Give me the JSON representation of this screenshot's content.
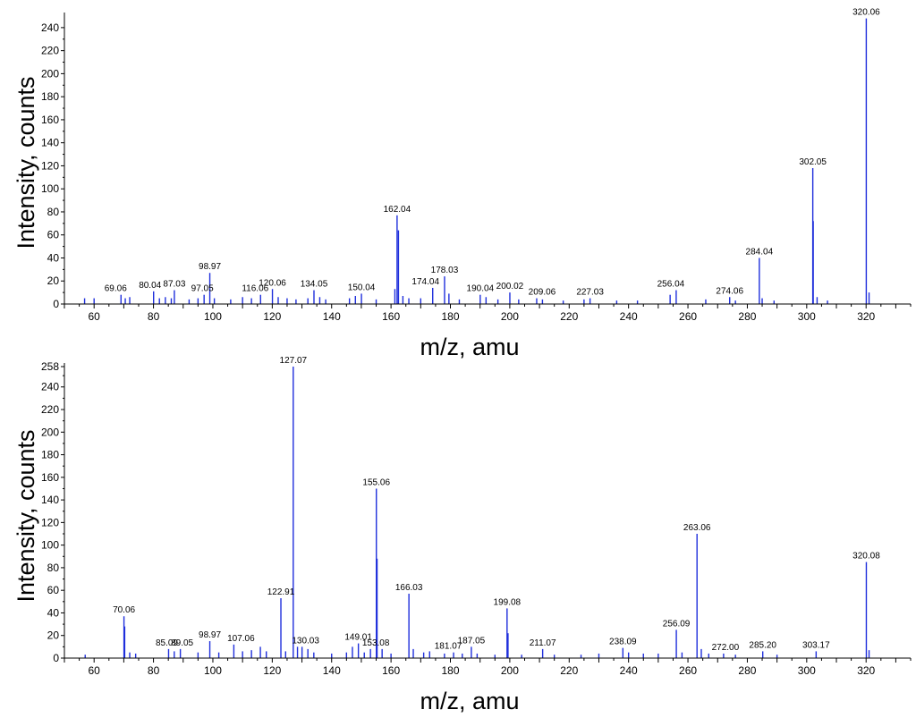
{
  "colors": {
    "series": "#1f2fdc",
    "axis": "#000000"
  },
  "chart_data": [
    {
      "type": "bar",
      "xlabel": "m/z, amu",
      "ylabel": "Intensity, counts",
      "xlim": [
        50,
        335
      ],
      "ylim": [
        0,
        250
      ],
      "xticks": [
        60,
        80,
        100,
        120,
        140,
        160,
        180,
        200,
        220,
        240,
        260,
        280,
        300,
        320
      ],
      "yticks": [
        0,
        20,
        40,
        60,
        80,
        100,
        120,
        140,
        160,
        180,
        200,
        220,
        240
      ],
      "peaks": [
        {
          "mz": 56.8,
          "i": 5
        },
        {
          "mz": 60.0,
          "i": 5
        },
        {
          "mz": 69.06,
          "i": 8
        },
        {
          "mz": 70.5,
          "i": 5
        },
        {
          "mz": 72.0,
          "i": 6
        },
        {
          "mz": 80.04,
          "i": 11
        },
        {
          "mz": 82.0,
          "i": 5
        },
        {
          "mz": 84.0,
          "i": 6
        },
        {
          "mz": 86.0,
          "i": 5
        },
        {
          "mz": 87.03,
          "i": 12
        },
        {
          "mz": 92.0,
          "i": 4
        },
        {
          "mz": 95.0,
          "i": 5
        },
        {
          "mz": 97.05,
          "i": 8
        },
        {
          "mz": 98.97,
          "i": 27
        },
        {
          "mz": 100.5,
          "i": 5
        },
        {
          "mz": 106.0,
          "i": 4
        },
        {
          "mz": 110.0,
          "i": 6
        },
        {
          "mz": 113.0,
          "i": 5
        },
        {
          "mz": 116.06,
          "i": 8
        },
        {
          "mz": 120.06,
          "i": 13
        },
        {
          "mz": 122.0,
          "i": 6
        },
        {
          "mz": 125.0,
          "i": 5
        },
        {
          "mz": 128.0,
          "i": 4
        },
        {
          "mz": 132.0,
          "i": 5
        },
        {
          "mz": 134.05,
          "i": 12
        },
        {
          "mz": 136.0,
          "i": 6
        },
        {
          "mz": 138.0,
          "i": 4
        },
        {
          "mz": 146.0,
          "i": 5
        },
        {
          "mz": 148.0,
          "i": 7
        },
        {
          "mz": 150.04,
          "i": 9
        },
        {
          "mz": 155.0,
          "i": 4
        },
        {
          "mz": 161.3,
          "i": 13
        },
        {
          "mz": 162.04,
          "i": 77
        },
        {
          "mz": 162.5,
          "i": 64
        },
        {
          "mz": 164.0,
          "i": 7
        },
        {
          "mz": 166.0,
          "i": 5
        },
        {
          "mz": 170.0,
          "i": 5
        },
        {
          "mz": 174.04,
          "i": 14
        },
        {
          "mz": 178.03,
          "i": 24
        },
        {
          "mz": 179.5,
          "i": 9
        },
        {
          "mz": 183.0,
          "i": 4
        },
        {
          "mz": 190.04,
          "i": 8
        },
        {
          "mz": 192.0,
          "i": 6
        },
        {
          "mz": 196.0,
          "i": 4
        },
        {
          "mz": 200.02,
          "i": 10
        },
        {
          "mz": 203.0,
          "i": 4
        },
        {
          "mz": 209.06,
          "i": 5
        },
        {
          "mz": 211.0,
          "i": 4
        },
        {
          "mz": 218.0,
          "i": 3
        },
        {
          "mz": 225.0,
          "i": 4
        },
        {
          "mz": 227.03,
          "i": 5
        },
        {
          "mz": 236.0,
          "i": 3
        },
        {
          "mz": 243.0,
          "i": 3
        },
        {
          "mz": 254.0,
          "i": 8
        },
        {
          "mz": 256.04,
          "i": 12
        },
        {
          "mz": 266.0,
          "i": 4
        },
        {
          "mz": 274.06,
          "i": 6
        },
        {
          "mz": 276.0,
          "i": 3
        },
        {
          "mz": 284.04,
          "i": 40
        },
        {
          "mz": 285.0,
          "i": 5
        },
        {
          "mz": 289.0,
          "i": 3
        },
        {
          "mz": 302.05,
          "i": 118
        },
        {
          "mz": 302.2,
          "i": 72
        },
        {
          "mz": 303.5,
          "i": 6
        },
        {
          "mz": 307.0,
          "i": 3
        },
        {
          "mz": 320.06,
          "i": 248
        },
        {
          "mz": 321.0,
          "i": 10
        }
      ],
      "labels": [
        {
          "mz": 69.06,
          "i": 8,
          "text": "69.06",
          "dx": -6,
          "dy": -4
        },
        {
          "mz": 80.04,
          "i": 11,
          "text": "80.04",
          "dx": -4,
          "dy": -4
        },
        {
          "mz": 87.03,
          "i": 12,
          "text": "87.03",
          "dx": 0,
          "dy": -4
        },
        {
          "mz": 97.05,
          "i": 8,
          "text": "97.05",
          "dx": -2,
          "dy": -4
        },
        {
          "mz": 98.97,
          "i": 27,
          "text": "98.97",
          "dx": 0,
          "dy": -4
        },
        {
          "mz": 116.06,
          "i": 8,
          "text": "116.06",
          "dx": -6,
          "dy": -4
        },
        {
          "mz": 120.06,
          "i": 13,
          "text": "120.06",
          "dx": 0,
          "dy": -4
        },
        {
          "mz": 134.05,
          "i": 12,
          "text": "134.05",
          "dx": 0,
          "dy": -4
        },
        {
          "mz": 150.04,
          "i": 9,
          "text": "150.04",
          "dx": 0,
          "dy": -4
        },
        {
          "mz": 162.04,
          "i": 77,
          "text": "162.04",
          "dx": 0,
          "dy": -4
        },
        {
          "mz": 174.04,
          "i": 14,
          "text": "174.04",
          "dx": -8,
          "dy": -4
        },
        {
          "mz": 178.03,
          "i": 24,
          "text": "178.03",
          "dx": 0,
          "dy": -4
        },
        {
          "mz": 190.04,
          "i": 8,
          "text": "190.04",
          "dx": 0,
          "dy": -4
        },
        {
          "mz": 200.02,
          "i": 10,
          "text": "200.02",
          "dx": 0,
          "dy": -4
        },
        {
          "mz": 209.06,
          "i": 5,
          "text": "209.06",
          "dx": 6,
          "dy": -4
        },
        {
          "mz": 227.03,
          "i": 5,
          "text": "227.03",
          "dx": 0,
          "dy": -4
        },
        {
          "mz": 256.04,
          "i": 12,
          "text": "256.04",
          "dx": -6,
          "dy": -4
        },
        {
          "mz": 274.06,
          "i": 6,
          "text": "274.06",
          "dx": 0,
          "dy": -4
        },
        {
          "mz": 284.04,
          "i": 40,
          "text": "284.04",
          "dx": 0,
          "dy": -4
        },
        {
          "mz": 302.05,
          "i": 118,
          "text": "302.05",
          "dx": 0,
          "dy": -4
        },
        {
          "mz": 320.06,
          "i": 248,
          "text": "320.06",
          "dx": 0,
          "dy": -4
        }
      ]
    },
    {
      "type": "bar",
      "xlabel": "m/z, amu",
      "ylabel": "Intensity, counts",
      "xlim": [
        50,
        335
      ],
      "ylim": [
        0,
        258
      ],
      "xticks": [
        60,
        80,
        100,
        120,
        140,
        160,
        180,
        200,
        220,
        240,
        260,
        280,
        300,
        320
      ],
      "yticks": [
        0,
        20,
        40,
        60,
        80,
        100,
        120,
        140,
        160,
        180,
        200,
        220,
        240,
        258
      ],
      "peaks": [
        {
          "mz": 57.0,
          "i": 3
        },
        {
          "mz": 70.06,
          "i": 37
        },
        {
          "mz": 70.3,
          "i": 28
        },
        {
          "mz": 72.0,
          "i": 5
        },
        {
          "mz": 74.0,
          "i": 4
        },
        {
          "mz": 85.09,
          "i": 8
        },
        {
          "mz": 87.0,
          "i": 6
        },
        {
          "mz": 89.05,
          "i": 8
        },
        {
          "mz": 95.0,
          "i": 5
        },
        {
          "mz": 98.97,
          "i": 15
        },
        {
          "mz": 102.0,
          "i": 5
        },
        {
          "mz": 107.06,
          "i": 12
        },
        {
          "mz": 110.0,
          "i": 6
        },
        {
          "mz": 113.0,
          "i": 7
        },
        {
          "mz": 116.0,
          "i": 10
        },
        {
          "mz": 118.0,
          "i": 6
        },
        {
          "mz": 122.91,
          "i": 53
        },
        {
          "mz": 124.5,
          "i": 6
        },
        {
          "mz": 127.07,
          "i": 258
        },
        {
          "mz": 128.5,
          "i": 10
        },
        {
          "mz": 130.03,
          "i": 10
        },
        {
          "mz": 132.0,
          "i": 8
        },
        {
          "mz": 134.0,
          "i": 5
        },
        {
          "mz": 140.0,
          "i": 4
        },
        {
          "mz": 145.0,
          "i": 5
        },
        {
          "mz": 147.0,
          "i": 10
        },
        {
          "mz": 149.01,
          "i": 13
        },
        {
          "mz": 151.0,
          "i": 5
        },
        {
          "mz": 153.08,
          "i": 8
        },
        {
          "mz": 155.06,
          "i": 150
        },
        {
          "mz": 155.3,
          "i": 88
        },
        {
          "mz": 157.0,
          "i": 8
        },
        {
          "mz": 160.0,
          "i": 4
        },
        {
          "mz": 166.03,
          "i": 57
        },
        {
          "mz": 167.5,
          "i": 8
        },
        {
          "mz": 171.0,
          "i": 5
        },
        {
          "mz": 173.0,
          "i": 6
        },
        {
          "mz": 178.0,
          "i": 4
        },
        {
          "mz": 181.07,
          "i": 5
        },
        {
          "mz": 184.0,
          "i": 4
        },
        {
          "mz": 187.05,
          "i": 10
        },
        {
          "mz": 189.0,
          "i": 4
        },
        {
          "mz": 195.0,
          "i": 3
        },
        {
          "mz": 199.08,
          "i": 44
        },
        {
          "mz": 199.4,
          "i": 22
        },
        {
          "mz": 204.0,
          "i": 3
        },
        {
          "mz": 211.07,
          "i": 8
        },
        {
          "mz": 215.0,
          "i": 3
        },
        {
          "mz": 224.0,
          "i": 3
        },
        {
          "mz": 230.0,
          "i": 4
        },
        {
          "mz": 238.09,
          "i": 9
        },
        {
          "mz": 240.0,
          "i": 5
        },
        {
          "mz": 245.0,
          "i": 4
        },
        {
          "mz": 250.0,
          "i": 4
        },
        {
          "mz": 256.09,
          "i": 25
        },
        {
          "mz": 258.0,
          "i": 5
        },
        {
          "mz": 263.06,
          "i": 110
        },
        {
          "mz": 264.5,
          "i": 8
        },
        {
          "mz": 267.0,
          "i": 4
        },
        {
          "mz": 272.0,
          "i": 4
        },
        {
          "mz": 276.0,
          "i": 3
        },
        {
          "mz": 285.2,
          "i": 6
        },
        {
          "mz": 290.0,
          "i": 3
        },
        {
          "mz": 303.17,
          "i": 6
        },
        {
          "mz": 320.08,
          "i": 85
        },
        {
          "mz": 321.0,
          "i": 7
        }
      ],
      "labels": [
        {
          "mz": 70.06,
          "i": 37,
          "text": "70.06",
          "dx": 0,
          "dy": -4
        },
        {
          "mz": 85.09,
          "i": 8,
          "text": "85.09",
          "dx": -2,
          "dy": -4
        },
        {
          "mz": 89.05,
          "i": 8,
          "text": "89.05",
          "dx": 2,
          "dy": -4
        },
        {
          "mz": 98.97,
          "i": 15,
          "text": "98.97",
          "dx": 0,
          "dy": -4
        },
        {
          "mz": 107.06,
          "i": 12,
          "text": "107.06",
          "dx": 8,
          "dy": -4
        },
        {
          "mz": 122.91,
          "i": 53,
          "text": "122.91",
          "dx": 0,
          "dy": -4
        },
        {
          "mz": 127.07,
          "i": 258,
          "text": "127.07",
          "dx": 0,
          "dy": -4
        },
        {
          "mz": 130.03,
          "i": 10,
          "text": "130.03",
          "dx": 4,
          "dy": -4
        },
        {
          "mz": 149.01,
          "i": 13,
          "text": "149.01",
          "dx": 0,
          "dy": -4
        },
        {
          "mz": 153.08,
          "i": 8,
          "text": "153.08",
          "dx": 6,
          "dy": -4
        },
        {
          "mz": 155.06,
          "i": 150,
          "text": "155.06",
          "dx": 0,
          "dy": -4
        },
        {
          "mz": 166.03,
          "i": 57,
          "text": "166.03",
          "dx": 0,
          "dy": -4
        },
        {
          "mz": 181.07,
          "i": 5,
          "text": "181.07",
          "dx": -6,
          "dy": -4
        },
        {
          "mz": 187.05,
          "i": 10,
          "text": "187.05",
          "dx": 0,
          "dy": -4
        },
        {
          "mz": 199.08,
          "i": 44,
          "text": "199.08",
          "dx": 0,
          "dy": -4
        },
        {
          "mz": 211.07,
          "i": 8,
          "text": "211.07",
          "dx": 0,
          "dy": -4
        },
        {
          "mz": 238.09,
          "i": 9,
          "text": "238.09",
          "dx": 0,
          "dy": -4
        },
        {
          "mz": 256.09,
          "i": 25,
          "text": "256.09",
          "dx": 0,
          "dy": -4
        },
        {
          "mz": 263.06,
          "i": 110,
          "text": "263.06",
          "dx": 0,
          "dy": -4
        },
        {
          "mz": 272.0,
          "i": 4,
          "text": "272.00",
          "dx": 2,
          "dy": -4
        },
        {
          "mz": 285.2,
          "i": 6,
          "text": "285.20",
          "dx": 0,
          "dy": -4
        },
        {
          "mz": 303.17,
          "i": 6,
          "text": "303.17",
          "dx": 0,
          "dy": -4
        },
        {
          "mz": 320.08,
          "i": 85,
          "text": "320.08",
          "dx": 0,
          "dy": -4
        }
      ]
    }
  ]
}
